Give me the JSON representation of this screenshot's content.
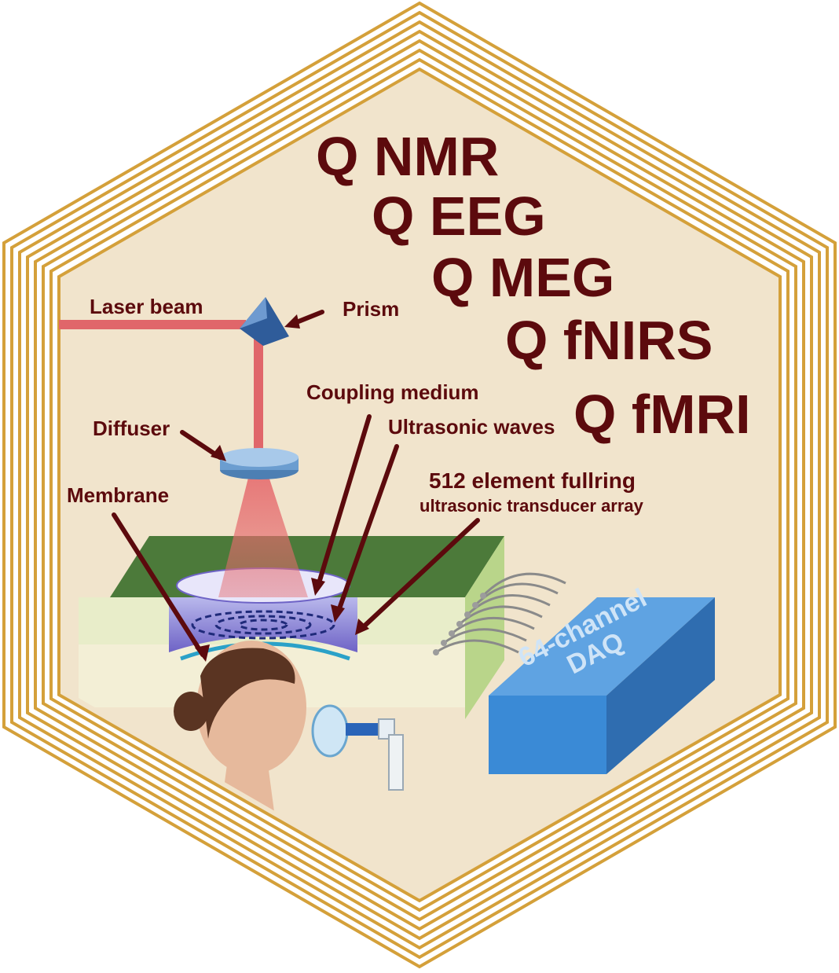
{
  "modalities": [
    "Q NMR",
    "Q EEG",
    "Q MEG",
    "Q fNIRS",
    "Q fMRI"
  ],
  "labels": {
    "laser_beam": "Laser beam",
    "prism": "Prism",
    "coupling_medium": "Coupling medium",
    "ultrasonic_waves": "Ultrasonic waves",
    "diffuser": "Diffuser",
    "transducer_title": "512 element fullring",
    "transducer_subtitle": "ultrasonic transducer array",
    "membrane": "Membrane"
  },
  "daq": {
    "line1": "64-channel",
    "line2": "DAQ"
  },
  "colors": {
    "hex_fill": "#f1e4cc",
    "hex_border": "#d4a03a",
    "text_dark_red": "#5c0a0d",
    "laser": "#e0666a",
    "daq_blue": "#3a8ad6",
    "green_panel": "#4c7a3a"
  }
}
